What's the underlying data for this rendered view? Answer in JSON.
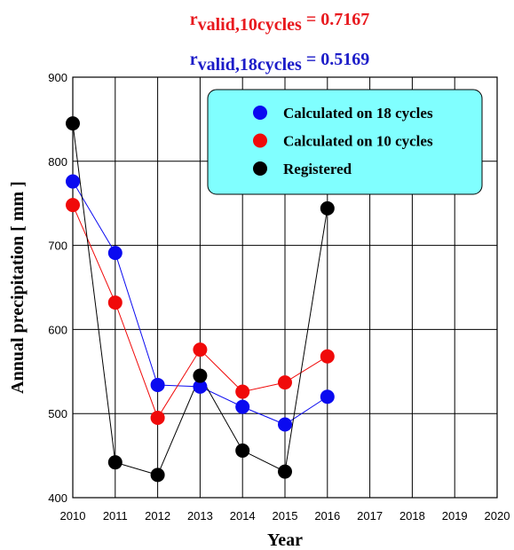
{
  "chart_data": {
    "type": "line",
    "annotations": [
      {
        "text": "r",
        "subscript": "valid,10cycles",
        "suffix": " = 0.7167",
        "color": "#e8191e"
      },
      {
        "text": "r",
        "subscript": "valid,18cycles",
        "suffix": " = 0.5169",
        "color": "#1c1cc8"
      }
    ],
    "x_label": "Year",
    "y_label": "Annual precipitation [ mm ]",
    "x": [
      2010,
      2011,
      2012,
      2013,
      2014,
      2015,
      2016
    ],
    "series": [
      {
        "name": "Calculated on 18 cycles",
        "color": "#0a0af0",
        "values": [
          776,
          691,
          534,
          532,
          508,
          487,
          520
        ]
      },
      {
        "name": "Calculated on 10 cycles",
        "color": "#f00a0a",
        "values": [
          748,
          632,
          495,
          576,
          526,
          537,
          568
        ]
      },
      {
        "name": "Registered",
        "color": "#000000",
        "values": [
          845,
          442,
          427,
          545,
          456,
          431,
          744
        ]
      }
    ],
    "xlim": [
      2010,
      2020
    ],
    "xticks": [
      2010,
      2011,
      2012,
      2013,
      2014,
      2015,
      2016,
      2017,
      2018,
      2019,
      2020
    ],
    "ylim": [
      400,
      900
    ],
    "yticks": [
      400,
      500,
      600,
      700,
      800,
      900
    ],
    "grid": true,
    "legend_color": "#80ffff"
  }
}
